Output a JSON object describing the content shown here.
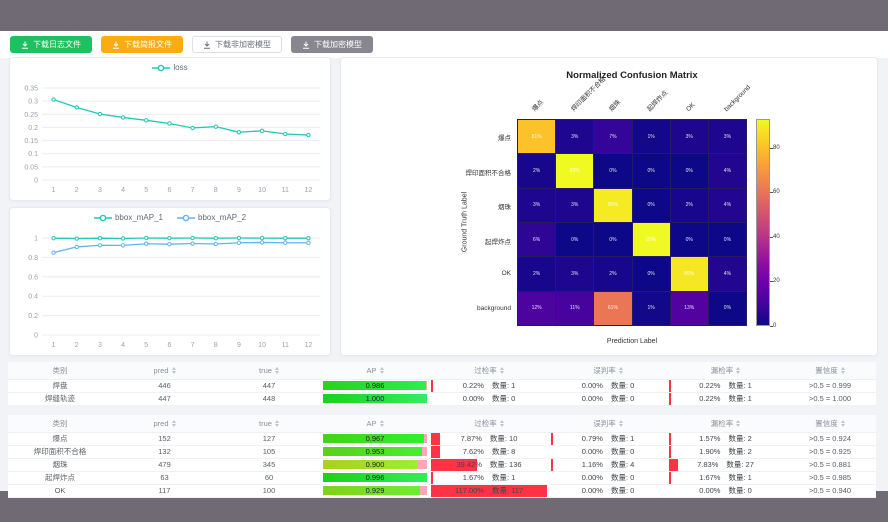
{
  "toolbar": {
    "buttons": [
      {
        "label": "下载日志文件",
        "variant": "green",
        "icon": "download-icon"
      },
      {
        "label": "下载简报文件",
        "variant": "orange",
        "icon": "download-icon"
      },
      {
        "label": "下载非加密模型",
        "variant": "plain",
        "icon": "download-icon"
      },
      {
        "label": "下载加密模型",
        "variant": "gray",
        "icon": "download-icon"
      }
    ]
  },
  "colors": {
    "frame": "#6f6a73",
    "teal_series": "#23c7b4",
    "blue_series": "#62b4ee",
    "ap_remainder_pink": "#ffa7b8",
    "rate_bar_red": "#ff3346",
    "button_green": "#1ec15f",
    "button_orange": "#fbac13",
    "button_gray": "#88868e"
  },
  "count_prefix": "数量:",
  "chart_data": [
    {
      "type": "line",
      "title": "",
      "x": [
        1,
        2,
        3,
        4,
        5,
        6,
        7,
        8,
        9,
        10,
        11,
        12
      ],
      "series": [
        {
          "name": "loss",
          "color": "#23c7b4",
          "values": [
            0.306,
            0.276,
            0.251,
            0.238,
            0.227,
            0.215,
            0.198,
            0.203,
            0.182,
            0.187,
            0.175,
            0.171
          ]
        }
      ],
      "ylim": [
        0,
        0.35
      ],
      "yticks": [
        0,
        0.05,
        0.1,
        0.15,
        0.2,
        0.25,
        0.3,
        0.35
      ],
      "legend_position": "top",
      "grid": true
    },
    {
      "type": "line",
      "title": "",
      "x": [
        1,
        2,
        3,
        4,
        5,
        6,
        7,
        8,
        9,
        10,
        11,
        12
      ],
      "series": [
        {
          "name": "bbox_mAP_1",
          "color": "#23c7b4",
          "values": [
            0.998,
            0.994,
            0.998,
            0.995,
            1.0,
            0.998,
            1.0,
            0.998,
            1.0,
            0.999,
            0.998,
            0.998
          ]
        },
        {
          "name": "bbox_mAP_2",
          "color": "#62b4ee",
          "values": [
            0.849,
            0.908,
            0.925,
            0.924,
            0.941,
            0.936,
            0.943,
            0.938,
            0.951,
            0.954,
            0.951,
            0.95
          ]
        }
      ],
      "ylim": [
        0,
        1
      ],
      "yticks": [
        0,
        0.2,
        0.4,
        0.6,
        0.8,
        1
      ],
      "legend_position": "top",
      "grid": true
    },
    {
      "type": "heatmap",
      "title": "Normalized Confusion Matrix",
      "xlabel": "Prediction Label",
      "ylabel": "Ground Truth Label",
      "labels": [
        "爆点",
        "焊印面积不合格",
        "烟珠",
        "起焊炸点",
        "OK",
        "background"
      ],
      "matrix_pct": [
        [
          81,
          3,
          7,
          1,
          3,
          3
        ],
        [
          2,
          93,
          0,
          0,
          0,
          4
        ],
        [
          3,
          3,
          90,
          0,
          2,
          4
        ],
        [
          6,
          0,
          0,
          93,
          0,
          0
        ],
        [
          2,
          3,
          2,
          0,
          89,
          4
        ],
        [
          12,
          11,
          61,
          1,
          13,
          0
        ]
      ],
      "vmax": 93,
      "colorbar_ticks": [
        0,
        20,
        40,
        60,
        80
      ],
      "colormap": "plasma"
    }
  ],
  "tables": [
    {
      "headers": [
        {
          "label": "类别",
          "sortable": false
        },
        {
          "label": "pred",
          "sortable": true
        },
        {
          "label": "true",
          "sortable": true
        },
        {
          "label": "AP",
          "sortable": true
        },
        {
          "label": "过检率",
          "sortable": true
        },
        {
          "label": "误判率",
          "sortable": true
        },
        {
          "label": "漏检率",
          "sortable": true
        },
        {
          "label": "置信度",
          "sortable": true
        }
      ],
      "rows": [
        {
          "name": "焊盘",
          "pred": "446",
          "true": "447",
          "ap": "0.986",
          "over_pct": "0.22%",
          "over_n": "1",
          "mis_pct": "0.00%",
          "mis_n": "0",
          "miss_pct": "0.22%",
          "miss_n": "1",
          "conf": ">0.5 = 0.999"
        },
        {
          "name": "焊缝轨迹",
          "pred": "447",
          "true": "448",
          "ap": "1.000",
          "over_pct": "0.00%",
          "over_n": "0",
          "mis_pct": "0.00%",
          "mis_n": "0",
          "miss_pct": "0.22%",
          "miss_n": "1",
          "conf": ">0.5 = 1.000"
        }
      ]
    },
    {
      "headers": [
        {
          "label": "类别",
          "sortable": false
        },
        {
          "label": "pred",
          "sortable": true
        },
        {
          "label": "true",
          "sortable": true
        },
        {
          "label": "AP",
          "sortable": true
        },
        {
          "label": "过检率",
          "sortable": true
        },
        {
          "label": "误判率",
          "sortable": true
        },
        {
          "label": "漏检率",
          "sortable": true
        },
        {
          "label": "置信度",
          "sortable": true
        }
      ],
      "rows": [
        {
          "name": "爆点",
          "pred": "152",
          "true": "127",
          "ap": "0.967",
          "over_pct": "7.87%",
          "over_n": "10",
          "mis_pct": "0.79%",
          "mis_n": "1",
          "miss_pct": "1.57%",
          "miss_n": "2",
          "conf": ">0.5 = 0.924"
        },
        {
          "name": "焊印面积不合格",
          "pred": "132",
          "true": "105",
          "ap": "0.953",
          "over_pct": "7.62%",
          "over_n": "8",
          "mis_pct": "0.00%",
          "mis_n": "0",
          "miss_pct": "1.90%",
          "miss_n": "2",
          "conf": ">0.5 = 0.925"
        },
        {
          "name": "烟珠",
          "pred": "479",
          "true": "345",
          "ap": "0.900",
          "over_pct": "39.42%",
          "over_n": "136",
          "mis_pct": "1.16%",
          "mis_n": "4",
          "miss_pct": "7.83%",
          "miss_n": "27",
          "conf": ">0.5 = 0.881"
        },
        {
          "name": "起焊炸点",
          "pred": "63",
          "true": "60",
          "ap": "0.996",
          "over_pct": "1.67%",
          "over_n": "1",
          "mis_pct": "0.00%",
          "mis_n": "0",
          "miss_pct": "1.67%",
          "miss_n": "1",
          "conf": ">0.5 = 0.985"
        },
        {
          "name": "OK",
          "pred": "117",
          "true": "100",
          "ap": "0.929",
          "over_pct": "117.00%",
          "over_n": "117",
          "mis_pct": "0.00%",
          "mis_n": "0",
          "miss_pct": "0.00%",
          "miss_n": "0",
          "conf": ">0.5 = 0.940"
        }
      ]
    }
  ]
}
